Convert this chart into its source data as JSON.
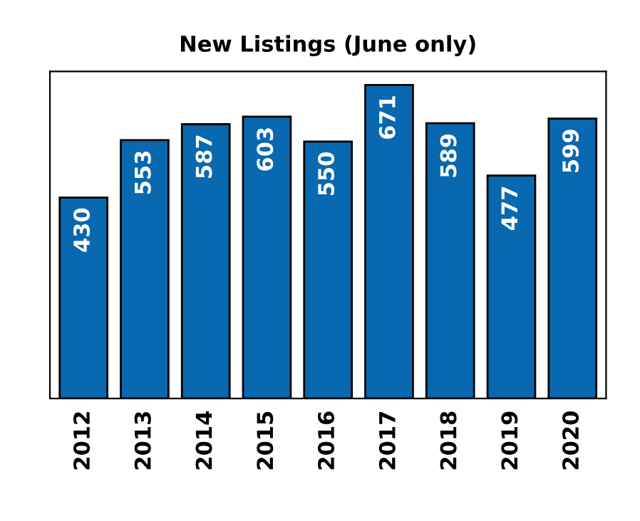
{
  "chart_data": {
    "type": "bar",
    "title": "New Listings (June only)",
    "categories": [
      "2012",
      "2013",
      "2014",
      "2015",
      "2016",
      "2017",
      "2018",
      "2019",
      "2020"
    ],
    "values": [
      430,
      553,
      587,
      603,
      550,
      671,
      589,
      477,
      599
    ],
    "color": "#0868b0",
    "ylim": [
      0,
      700
    ],
    "data_labels": true,
    "grid": false,
    "tick_labels": "x"
  }
}
